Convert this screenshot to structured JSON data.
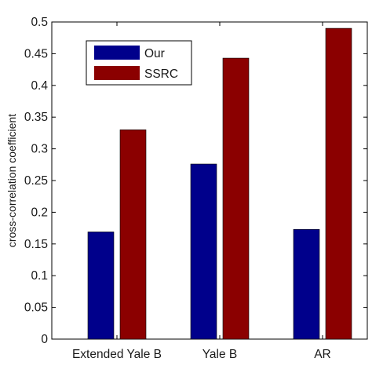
{
  "chart_data": {
    "type": "bar",
    "title": "",
    "xlabel": "",
    "ylabel": "cross-correlation coefficient",
    "categories": [
      "Extended Yale B",
      "Yale B",
      "AR"
    ],
    "series": [
      {
        "name": "Our",
        "color": "#00008b",
        "values": [
          0.169,
          0.276,
          0.173
        ]
      },
      {
        "name": "SSRC",
        "color": "#8b0000",
        "values": [
          0.33,
          0.443,
          0.49
        ]
      }
    ],
    "ylim": [
      0,
      0.5
    ],
    "yticks": [
      0,
      0.05,
      0.1,
      0.15,
      0.2,
      0.25,
      0.3,
      0.35,
      0.4,
      0.45,
      0.5
    ],
    "ytick_labels": [
      "0",
      "0.05",
      "0.1",
      "0.15",
      "0.2",
      "0.25",
      "0.3",
      "0.35",
      "0.4",
      "0.45",
      "0.5"
    ],
    "grid": false,
    "legend_position": "top-left"
  }
}
